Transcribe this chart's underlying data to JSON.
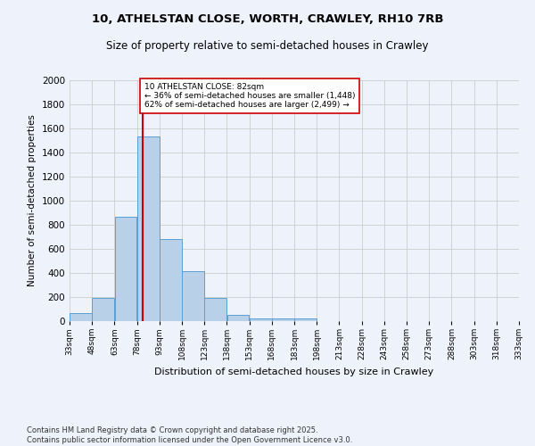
{
  "title_line1": "10, ATHELSTAN CLOSE, WORTH, CRAWLEY, RH10 7RB",
  "title_line2": "Size of property relative to semi-detached houses in Crawley",
  "xlabel": "Distribution of semi-detached houses by size in Crawley",
  "ylabel": "Number of semi-detached properties",
  "footnote_line1": "Contains HM Land Registry data © Crown copyright and database right 2025.",
  "footnote_line2": "Contains public sector information licensed under the Open Government Licence v3.0.",
  "annotation_line1": "10 ATHELSTAN CLOSE: 82sqm",
  "annotation_line2": "← 36% of semi-detached houses are smaller (1,448)",
  "annotation_line3": "62% of semi-detached houses are larger (2,499) →",
  "property_size_sqm": 82,
  "bar_color": "#b8d0e8",
  "bar_edge_color": "#5a9fd4",
  "vline_color": "#cc0000",
  "background_color": "#eef2fa",
  "annotation_box_color": "#ffffff",
  "annotation_box_edge": "#cc0000",
  "bins": [
    33,
    48,
    63,
    78,
    93,
    108,
    123,
    138,
    153,
    168,
    183,
    198,
    213,
    228,
    243,
    258,
    273,
    288,
    303,
    318,
    333
  ],
  "bin_labels": [
    "33sqm",
    "48sqm",
    "63sqm",
    "78sqm",
    "93sqm",
    "108sqm",
    "123sqm",
    "138sqm",
    "153sqm",
    "168sqm",
    "183sqm",
    "198sqm",
    "213sqm",
    "228sqm",
    "243sqm",
    "258sqm",
    "273sqm",
    "288sqm",
    "303sqm",
    "318sqm",
    "333sqm"
  ],
  "counts": [
    65,
    195,
    870,
    1530,
    680,
    415,
    195,
    55,
    25,
    20,
    20,
    0,
    0,
    0,
    0,
    0,
    0,
    0,
    0,
    0
  ],
  "ylim": [
    0,
    2000
  ],
  "yticks": [
    0,
    200,
    400,
    600,
    800,
    1000,
    1200,
    1400,
    1600,
    1800,
    2000
  ],
  "grid_color": "#cccccc"
}
